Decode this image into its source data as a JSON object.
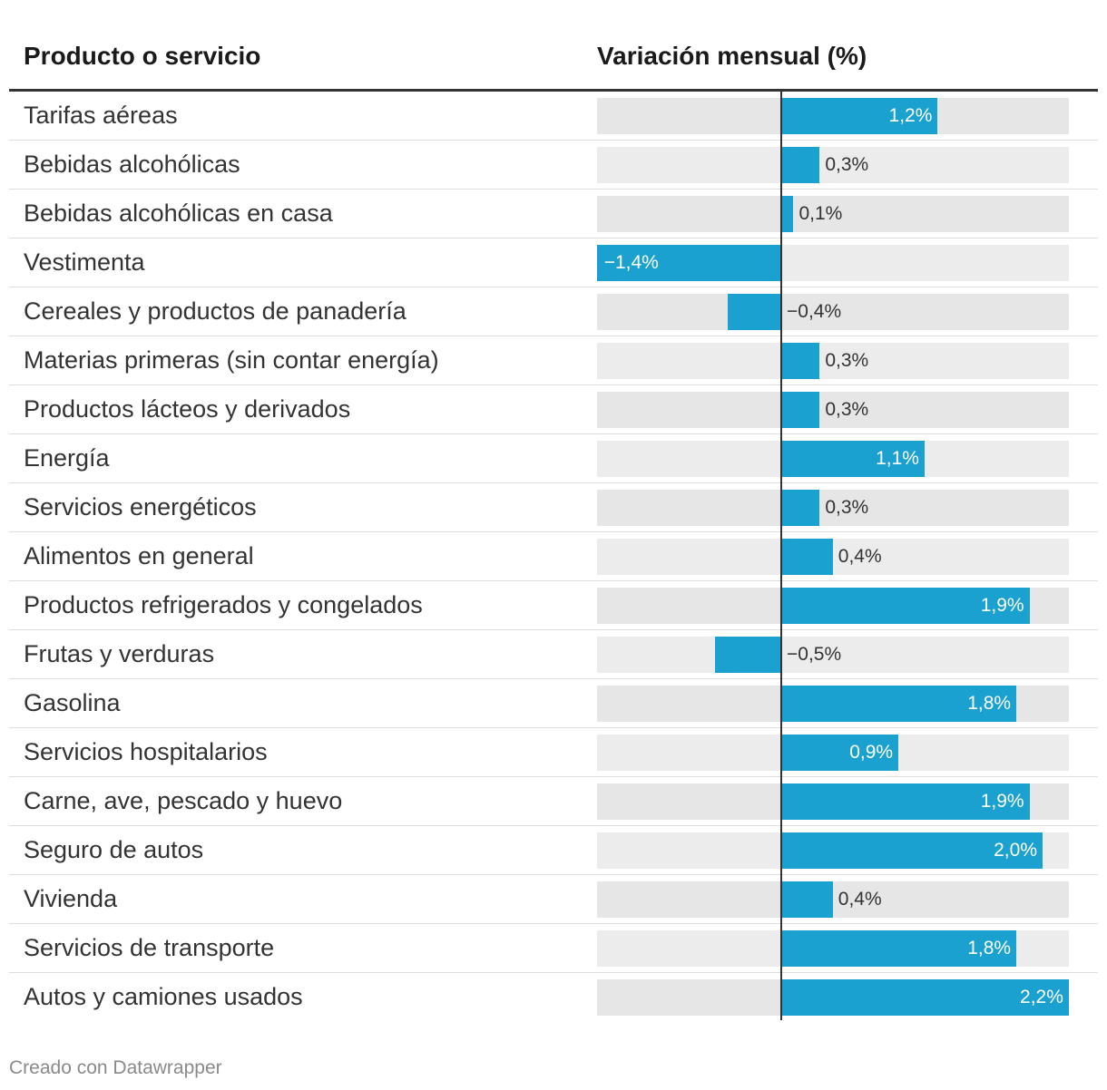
{
  "table": {
    "header_product": "Producto o servicio",
    "header_change": "Variación mensual (%)"
  },
  "chart_data": {
    "type": "bar",
    "orientation": "horizontal",
    "title": "",
    "xlabel": "Variación mensual (%)",
    "ylabel": "Producto o servicio",
    "xlim": [
      -1.4,
      2.2
    ],
    "categories": [
      "Tarifas aéreas",
      "Bebidas alcohólicas",
      "Bebidas alcohólicas en casa",
      "Vestimenta",
      "Cereales y productos de panadería",
      "Materias primeras (sin contar energía)",
      "Productos lácteos y derivados",
      "Energía",
      "Servicios energéticos",
      "Alimentos en general",
      "Productos refrigerados y congelados",
      "Frutas y verduras",
      "Gasolina",
      "Servicios hospitalarios",
      "Carne, ave, pescado y huevo",
      "Seguro de autos",
      "Vivienda",
      "Servicios de transporte",
      "Autos y camiones usados"
    ],
    "values": [
      1.2,
      0.3,
      0.1,
      -1.4,
      -0.4,
      0.3,
      0.3,
      1.1,
      0.3,
      0.4,
      1.9,
      -0.5,
      1.8,
      0.9,
      1.9,
      2.0,
      0.4,
      1.8,
      2.2
    ],
    "value_labels": [
      "1,2%",
      "0,3%",
      "0,1%",
      "−1,4%",
      "−0,4%",
      "0,3%",
      "0,3%",
      "1,1%",
      "0,3%",
      "0,4%",
      "1,9%",
      "−0,5%",
      "1,8%",
      "0,9%",
      "1,9%",
      "2,0%",
      "0,4%",
      "1,8%",
      "2,2%"
    ]
  },
  "colors": {
    "bar": "#1ba1d0",
    "track": "#e6e6e6"
  },
  "footer": {
    "credit": "Creado con Datawrapper"
  }
}
